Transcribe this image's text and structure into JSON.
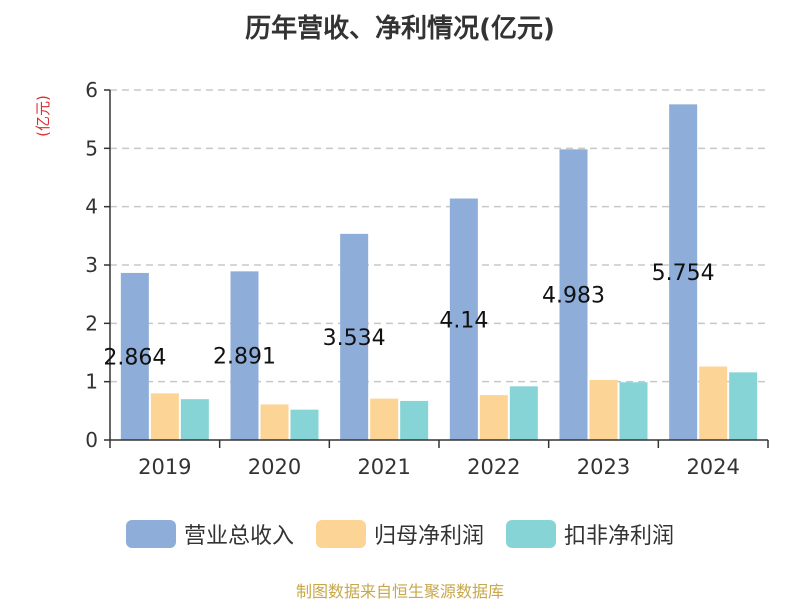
{
  "chart_data": {
    "type": "bar",
    "title": "历年营收、净利情况(亿元)",
    "ylabel": "(亿元)",
    "categories": [
      "2019",
      "2020",
      "2021",
      "2022",
      "2023",
      "2024"
    ],
    "series": [
      {
        "name": "营业总收入",
        "color": "#8eadd9",
        "values": [
          2.864,
          2.891,
          3.534,
          4.14,
          4.983,
          5.754
        ]
      },
      {
        "name": "归母净利润",
        "color": "#fcd596",
        "values": [
          0.8,
          0.61,
          0.71,
          0.77,
          1.03,
          1.26
        ]
      },
      {
        "name": "扣非净利润",
        "color": "#87d4d6",
        "values": [
          0.7,
          0.52,
          0.67,
          0.92,
          0.99,
          1.16
        ]
      }
    ],
    "data_labels": [
      "2.864",
      "2.891",
      "3.534",
      "4.14",
      "4.983",
      "5.754"
    ],
    "ylim": [
      0,
      6
    ],
    "yticks": [
      "0",
      "1",
      "2",
      "3",
      "4",
      "5",
      "6"
    ],
    "grid": true,
    "legend_position": "bottom"
  },
  "footer": {
    "source": "制图数据来自恒生聚源数据库"
  }
}
